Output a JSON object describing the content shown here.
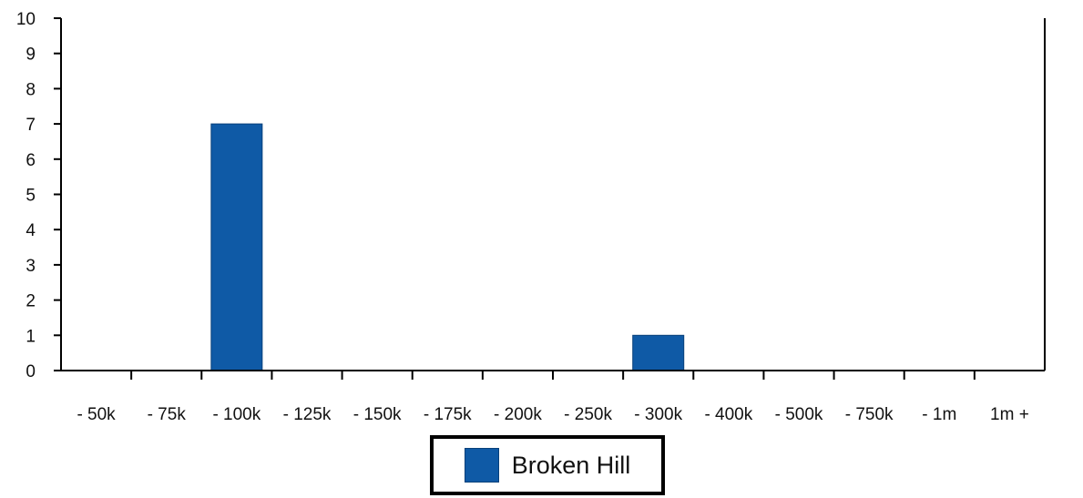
{
  "chart_data": {
    "type": "bar",
    "title": "",
    "xlabel": "",
    "ylabel": "",
    "categories": [
      "- 50k",
      "- 75k",
      "- 100k",
      "- 125k",
      "- 150k",
      "- 175k",
      "- 200k",
      "- 250k",
      "- 300k",
      "- 400k",
      "- 500k",
      "- 750k",
      "- 1m",
      "1m +"
    ],
    "series": [
      {
        "name": "Broken Hill",
        "values": [
          0,
          0,
          7,
          0,
          0,
          0,
          0,
          0,
          1,
          0,
          0,
          0,
          0,
          0
        ],
        "color": "#0f5aa6"
      }
    ],
    "ylim": [
      0,
      10
    ],
    "yticks": [
      0,
      1,
      2,
      3,
      4,
      5,
      6,
      7,
      8,
      9,
      10
    ],
    "grid": false,
    "legend_position": "bottom-center"
  }
}
